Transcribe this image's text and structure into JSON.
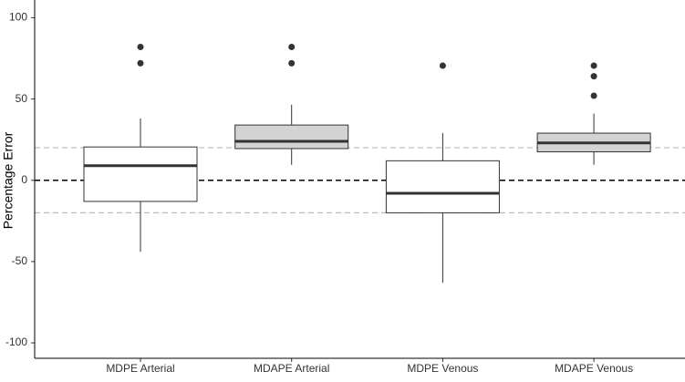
{
  "chart_data": {
    "type": "box",
    "y_label": "Percentage Error",
    "categories": [
      "MDPE Arterial",
      "MDAPE Arterial",
      "MDPE Venous",
      "MDAPE Venous"
    ],
    "boxes": [
      {
        "whisker_low": -44,
        "q1": -13,
        "median": 9,
        "q3": 20.5,
        "whisker_high": 38,
        "outliers": [
          82,
          72
        ],
        "fill": "#ffffff"
      },
      {
        "whisker_low": 9.5,
        "q1": 19.5,
        "median": 24,
        "q3": 34,
        "whisker_high": 46.5,
        "outliers": [
          82,
          72
        ],
        "fill": "#d3d3d3"
      },
      {
        "whisker_low": -63,
        "q1": -20,
        "median": -8,
        "q3": 12,
        "whisker_high": 29,
        "outliers": [
          70.5
        ],
        "fill": "#ffffff"
      },
      {
        "whisker_low": 9.5,
        "q1": 17.5,
        "median": 23,
        "q3": 29,
        "whisker_high": 41,
        "outliers": [
          70.5,
          64,
          52
        ],
        "fill": "#d3d3d3"
      }
    ],
    "reference_lines": [
      {
        "value": 0,
        "color": "#000000"
      },
      {
        "value": 20,
        "color": "#bbbbbb"
      },
      {
        "value": -20,
        "color": "#bbbbbb"
      }
    ],
    "ylim": [
      -109.5,
      110.9
    ],
    "yticks": [
      -100,
      -50,
      0,
      50,
      100
    ]
  }
}
